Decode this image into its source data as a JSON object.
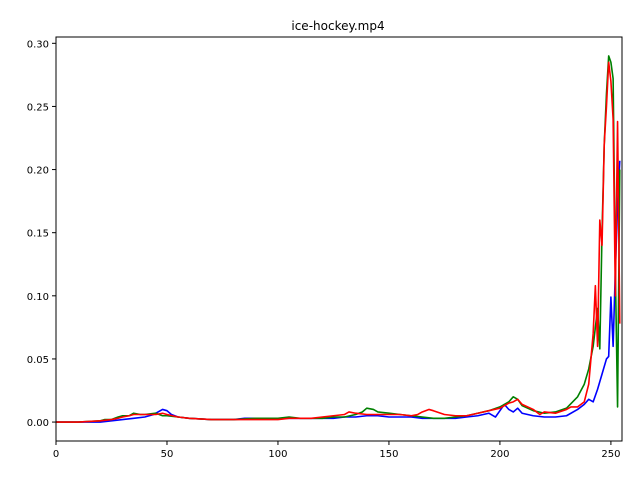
{
  "chart_data": {
    "type": "line",
    "title": "ice-hockey.mp4",
    "xlabel": "",
    "ylabel": "",
    "xlim": [
      0,
      255
    ],
    "ylim": [
      -0.015,
      0.305
    ],
    "xticks": [
      0,
      50,
      100,
      150,
      200,
      250
    ],
    "yticks": [
      0.0,
      0.05,
      0.1,
      0.15,
      0.2,
      0.25,
      0.3
    ],
    "xtick_labels": [
      "0",
      "50",
      "100",
      "150",
      "200",
      "250"
    ],
    "ytick_labels": [
      "0.00",
      "0.05",
      "0.10",
      "0.15",
      "0.20",
      "0.25",
      "0.30"
    ],
    "grid": false,
    "series": [
      {
        "color": "#0000ff",
        "x": [
          0,
          10,
          20,
          25,
          30,
          35,
          40,
          44,
          46,
          48,
          50,
          52,
          55,
          60,
          70,
          80,
          85,
          90,
          95,
          100,
          105,
          110,
          115,
          120,
          125,
          130,
          135,
          140,
          145,
          150,
          155,
          160,
          165,
          170,
          175,
          180,
          185,
          190,
          195,
          198,
          200,
          202,
          204,
          206,
          208,
          210,
          215,
          220,
          225,
          230,
          235,
          238,
          240,
          242,
          244,
          246,
          248,
          249,
          250,
          251,
          252,
          253,
          254
        ],
        "y": [
          0,
          0,
          0,
          0.001,
          0.002,
          0.003,
          0.004,
          0.006,
          0.008,
          0.01,
          0.009,
          0.006,
          0.004,
          0.003,
          0.002,
          0.002,
          0.003,
          0.003,
          0.003,
          0.003,
          0.003,
          0.003,
          0.003,
          0.003,
          0.003,
          0.004,
          0.004,
          0.005,
          0.005,
          0.004,
          0.004,
          0.004,
          0.003,
          0.003,
          0.003,
          0.003,
          0.004,
          0.005,
          0.007,
          0.004,
          0.009,
          0.014,
          0.01,
          0.008,
          0.011,
          0.007,
          0.005,
          0.004,
          0.004,
          0.005,
          0.01,
          0.014,
          0.018,
          0.016,
          0.026,
          0.038,
          0.05,
          0.052,
          0.099,
          0.06,
          0.12,
          0.172,
          0.207
        ]
      },
      {
        "color": "#008000",
        "x": [
          0,
          10,
          20,
          22,
          25,
          28,
          30,
          33,
          35,
          38,
          40,
          45,
          48,
          50,
          55,
          60,
          70,
          80,
          90,
          100,
          105,
          110,
          115,
          120,
          125,
          130,
          135,
          138,
          140,
          143,
          145,
          150,
          155,
          160,
          165,
          170,
          175,
          180,
          185,
          190,
          195,
          200,
          202,
          204,
          206,
          208,
          210,
          215,
          220,
          225,
          230,
          235,
          238,
          240,
          242,
          244,
          245,
          246,
          247,
          248,
          249,
          250,
          251,
          252,
          253,
          254
        ],
        "y": [
          0,
          0,
          0.001,
          0.002,
          0.002,
          0.004,
          0.005,
          0.005,
          0.007,
          0.006,
          0.006,
          0.007,
          0.005,
          0.005,
          0.004,
          0.003,
          0.002,
          0.002,
          0.003,
          0.003,
          0.004,
          0.003,
          0.003,
          0.003,
          0.004,
          0.004,
          0.006,
          0.008,
          0.011,
          0.01,
          0.008,
          0.007,
          0.006,
          0.005,
          0.004,
          0.003,
          0.003,
          0.004,
          0.005,
          0.007,
          0.009,
          0.012,
          0.014,
          0.016,
          0.02,
          0.018,
          0.013,
          0.009,
          0.007,
          0.008,
          0.011,
          0.02,
          0.03,
          0.042,
          0.06,
          0.09,
          0.058,
          0.15,
          0.22,
          0.26,
          0.29,
          0.285,
          0.272,
          0.12,
          0.012,
          0.2
        ]
      },
      {
        "color": "#ff0000",
        "x": [
          0,
          10,
          20,
          25,
          28,
          30,
          33,
          35,
          38,
          40,
          45,
          48,
          50,
          55,
          60,
          70,
          80,
          90,
          100,
          105,
          110,
          115,
          120,
          125,
          130,
          132,
          135,
          140,
          145,
          150,
          155,
          160,
          163,
          165,
          168,
          170,
          175,
          180,
          185,
          190,
          195,
          200,
          202,
          204,
          206,
          208,
          210,
          215,
          218,
          220,
          225,
          230,
          232,
          235,
          238,
          240,
          242,
          243,
          244,
          245,
          246,
          247,
          248,
          249,
          250,
          251,
          252,
          253,
          254
        ],
        "y": [
          0,
          0,
          0.001,
          0.002,
          0.003,
          0.004,
          0.005,
          0.006,
          0.006,
          0.006,
          0.006,
          0.007,
          0.006,
          0.004,
          0.003,
          0.002,
          0.002,
          0.002,
          0.002,
          0.003,
          0.003,
          0.003,
          0.004,
          0.005,
          0.006,
          0.008,
          0.007,
          0.006,
          0.006,
          0.006,
          0.006,
          0.005,
          0.006,
          0.008,
          0.01,
          0.009,
          0.006,
          0.005,
          0.005,
          0.007,
          0.009,
          0.011,
          0.013,
          0.015,
          0.016,
          0.018,
          0.014,
          0.01,
          0.006,
          0.008,
          0.007,
          0.01,
          0.012,
          0.012,
          0.016,
          0.03,
          0.07,
          0.108,
          0.06,
          0.16,
          0.14,
          0.22,
          0.25,
          0.285,
          0.27,
          0.24,
          0.1,
          0.238,
          0.078
        ]
      }
    ]
  }
}
